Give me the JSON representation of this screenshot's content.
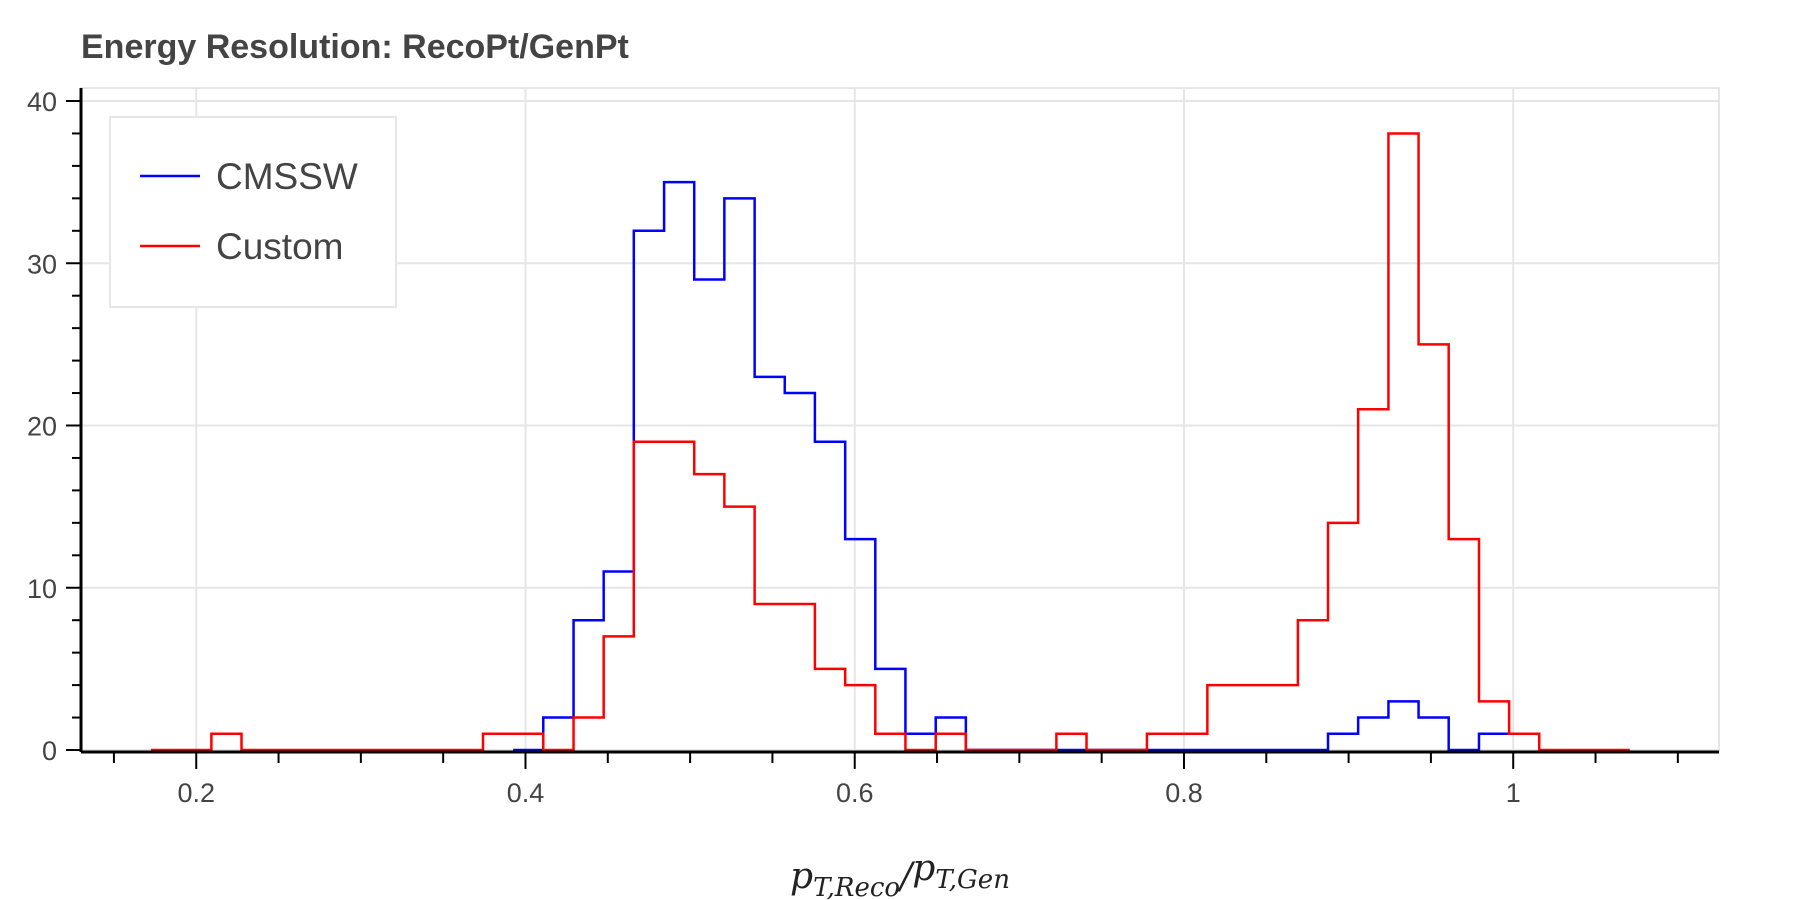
{
  "chart_data": {
    "type": "line",
    "title": "Energy Resolution: RecoPt/GenPt",
    "xlabel": "p_{T,Reco}/p_{T,Gen}",
    "ylabel": "",
    "xlim": [
      0.13,
      1.125
    ],
    "ylim": [
      0,
      40
    ],
    "xticks": [
      0.2,
      0.4,
      0.6,
      0.8,
      1
    ],
    "xtick_labels": [
      "0.2",
      "0.4",
      "0.6",
      "0.8",
      "1"
    ],
    "yticks": [
      0,
      10,
      20,
      30,
      40
    ],
    "ytick_labels": [
      "0",
      "10",
      "20",
      "30",
      "40"
    ],
    "grid": true,
    "legend_position": "top-left",
    "series": [
      {
        "name": "CMSSW",
        "color": "#0000ff",
        "style": "step",
        "bin_edges": [
          0.3925,
          0.4108,
          0.4292,
          0.4475,
          0.4658,
          0.4842,
          0.5025,
          0.5208,
          0.5392,
          0.5575,
          0.5758,
          0.5942,
          0.6125,
          0.6308,
          0.6492,
          0.6675,
          0.6858,
          0.7042,
          0.7225,
          0.7408,
          0.7592,
          0.7775,
          0.7958,
          0.8142,
          0.8325,
          0.8508,
          0.8692,
          0.8875,
          0.9058,
          0.9242,
          0.9425,
          0.9608,
          0.9792,
          0.9975,
          1.0158
        ],
        "counts": [
          0,
          2,
          8,
          11,
          32,
          35,
          29,
          34,
          23,
          22,
          19,
          13,
          5,
          1,
          2,
          0,
          0,
          0,
          0,
          0,
          0,
          0,
          0,
          0,
          0,
          0,
          0,
          1,
          2,
          3,
          2,
          0,
          1,
          1
        ]
      },
      {
        "name": "Custom",
        "color": "#ff0000",
        "style": "step",
        "bin_edges": [
          0.1725,
          0.1908,
          0.2092,
          0.2275,
          0.2458,
          0.2642,
          0.2825,
          0.3008,
          0.3192,
          0.3375,
          0.3558,
          0.3742,
          0.3925,
          0.4108,
          0.4292,
          0.4475,
          0.4658,
          0.4842,
          0.5025,
          0.5208,
          0.5392,
          0.5575,
          0.5758,
          0.5942,
          0.6125,
          0.6308,
          0.6492,
          0.6675,
          0.6858,
          0.7042,
          0.7225,
          0.7408,
          0.7592,
          0.7775,
          0.7958,
          0.8142,
          0.8325,
          0.8508,
          0.8692,
          0.8875,
          0.9058,
          0.9242,
          0.9425,
          0.9608,
          0.9792,
          0.9975,
          1.0158,
          1.0342,
          1.0525,
          1.0708
        ],
        "counts": [
          0,
          0,
          1,
          0,
          0,
          0,
          0,
          0,
          0,
          0,
          0,
          1,
          1,
          0,
          2,
          7,
          19,
          19,
          17,
          15,
          9,
          9,
          5,
          4,
          1,
          0,
          1,
          0,
          0,
          0,
          1,
          0,
          0,
          1,
          1,
          4,
          4,
          4,
          8,
          14,
          21,
          38,
          25,
          13,
          3,
          1,
          0,
          0,
          0
        ]
      }
    ]
  }
}
